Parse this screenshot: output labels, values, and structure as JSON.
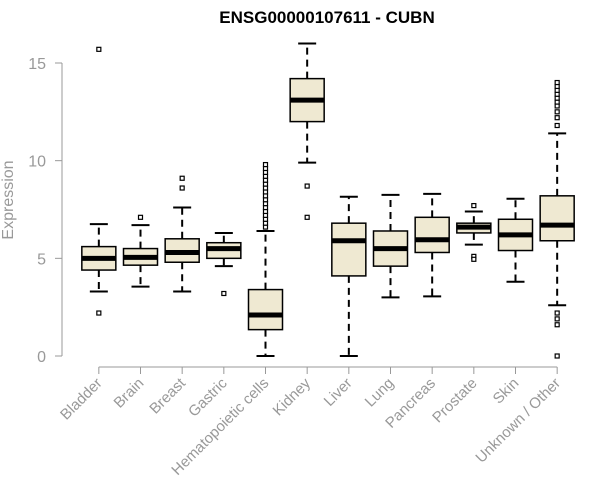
{
  "chart_data": {
    "type": "boxplot",
    "title": "ENSG00000107611 - CUBN",
    "xlabel": "",
    "ylabel": "Expression",
    "ylim": [
      0,
      16.4
    ],
    "yticks": [
      0,
      5,
      10,
      15
    ],
    "grid": false,
    "colors": {
      "box_fill": "#efe9d2",
      "stroke": "#000000",
      "axis": "#999999",
      "text": "#999999"
    },
    "categories": [
      "Bladder",
      "Brain",
      "Breast",
      "Gastric",
      "Hematopoietic cells",
      "Kidney",
      "Liver",
      "Lung",
      "Pancreas",
      "Prostate",
      "Skin",
      "Unknown / Other"
    ],
    "boxes": [
      {
        "q1": 4.4,
        "median": 5.0,
        "q3": 5.6,
        "whisker_low": 3.3,
        "whisker_high": 6.75,
        "outliers": [
          15.7,
          2.2
        ]
      },
      {
        "q1": 4.65,
        "median": 5.05,
        "q3": 5.5,
        "whisker_low": 3.55,
        "whisker_high": 6.7,
        "outliers": [
          7.1
        ]
      },
      {
        "q1": 4.8,
        "median": 5.3,
        "q3": 6.0,
        "whisker_low": 3.3,
        "whisker_high": 7.6,
        "outliers": [
          8.6,
          9.1
        ]
      },
      {
        "q1": 5.0,
        "median": 5.5,
        "q3": 5.8,
        "whisker_low": 4.6,
        "whisker_high": 6.3,
        "outliers": [
          3.2
        ]
      },
      {
        "q1": 1.35,
        "median": 2.1,
        "q3": 3.4,
        "whisker_low": 0.0,
        "whisker_high": 6.4,
        "outliers": [
          6.6,
          6.8,
          7.0,
          7.2,
          7.4,
          7.6,
          7.8,
          8.0,
          8.2,
          8.4,
          8.6,
          8.8,
          9.0,
          9.2,
          9.4,
          9.6,
          9.8
        ]
      },
      {
        "q1": 12.0,
        "median": 13.1,
        "q3": 14.2,
        "whisker_low": 9.9,
        "whisker_high": 16.0,
        "outliers": [
          8.7,
          7.1
        ]
      },
      {
        "q1": 4.1,
        "median": 5.9,
        "q3": 6.8,
        "whisker_low": 0.0,
        "whisker_high": 8.15,
        "outliers": []
      },
      {
        "q1": 4.6,
        "median": 5.5,
        "q3": 6.4,
        "whisker_low": 3.0,
        "whisker_high": 8.25,
        "outliers": []
      },
      {
        "q1": 5.3,
        "median": 5.95,
        "q3": 7.1,
        "whisker_low": 3.05,
        "whisker_high": 8.3,
        "outliers": []
      },
      {
        "q1": 6.3,
        "median": 6.6,
        "q3": 6.8,
        "whisker_low": 5.7,
        "whisker_high": 7.4,
        "outliers": [
          7.7,
          5.1,
          4.95
        ]
      },
      {
        "q1": 5.4,
        "median": 6.2,
        "q3": 7.0,
        "whisker_low": 3.8,
        "whisker_high": 8.05,
        "outliers": []
      },
      {
        "q1": 5.9,
        "median": 6.7,
        "q3": 8.2,
        "whisker_low": 2.6,
        "whisker_high": 11.4,
        "outliers": [
          11.8,
          12.2,
          12.5,
          12.8,
          13.0,
          13.2,
          13.4,
          13.6,
          13.8,
          14.0,
          2.2,
          1.9,
          1.6,
          0.0
        ]
      }
    ]
  }
}
